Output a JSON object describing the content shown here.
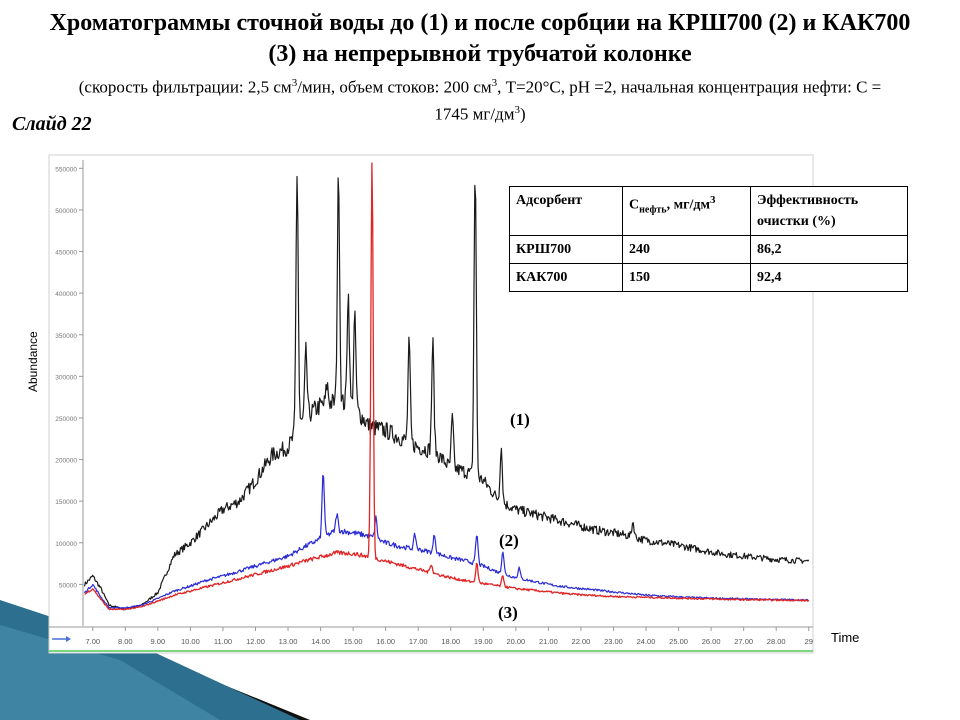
{
  "slide": {
    "title": "Хроматограммы сточной воды до (1) и после сорбции на КРШ700 (2) и КАК700 (3) на непрерывной трубчатой колонке",
    "conditions_part1": "(скорость фильтрации:  2,5 см",
    "conditions_sup1": "3",
    "conditions_part2": "/мин,  объем стоков: 200 см",
    "conditions_sup2": "3",
    "conditions_part3": ",  T=20°C, pH =2, начальная концентрация  нефти: С = 1745 мг/дм",
    "conditions_sup3": "3",
    "conditions_part4": ")",
    "slide_label": "Слайд 22"
  },
  "table": {
    "headers": {
      "adsorbent": "Адсорбент",
      "c_main": "С",
      "c_sub": "нефть",
      "c_unit": ", мг/дм",
      "c_sup": "3",
      "efficiency": "Эффективность очистки (%)"
    },
    "rows": [
      {
        "adsorbent": "КРШ700",
        "c": "240",
        "eff": "86,2"
      },
      {
        "adsorbent": "КАК700",
        "c": "150",
        "eff": "92,4"
      }
    ]
  },
  "chart_data": {
    "type": "line",
    "xlabel": "Time",
    "ylabel": "Abundance",
    "xlim": [
      6.7,
      29.1
    ],
    "ylim": [
      0,
      560000
    ],
    "x_ticks": [
      "7.00",
      "8.00",
      "9.00",
      "10.00",
      "11.00",
      "12.00",
      "13.00",
      "14.00",
      "15.00",
      "16.00",
      "17.00",
      "18.00",
      "19.00",
      "20.00",
      "21.00",
      "22.00",
      "23.00",
      "24.00",
      "25.00",
      "26.00",
      "27.00",
      "28.00",
      "29"
    ],
    "y_ticks": [
      "50000",
      "100000",
      "150000",
      "200000",
      "250000",
      "300000",
      "350000",
      "400000",
      "450000",
      "500000",
      "550000"
    ],
    "series": [
      {
        "name": "(1)",
        "color": "#1a1a1a",
        "x": [
          6.75,
          7.0,
          7.25,
          7.5,
          8.0,
          8.5,
          9.0,
          9.5,
          10.0,
          10.5,
          11.0,
          11.5,
          12.0,
          12.5,
          13.0,
          13.5,
          14.0,
          14.5,
          15.0,
          15.5,
          16.0,
          16.5,
          17.0,
          17.5,
          18.0,
          18.5,
          19.0,
          19.5,
          20.0,
          20.5,
          21.0,
          21.5,
          22.0,
          22.5,
          23.0,
          23.5,
          24.0,
          24.5,
          25.0,
          25.5,
          26.0,
          26.5,
          27.0,
          27.5,
          28.0,
          28.5,
          29.0
        ],
        "y": [
          50000,
          60000,
          45000,
          25000,
          20000,
          25000,
          40000,
          85000,
          100000,
          120000,
          140000,
          150000,
          175000,
          205000,
          215000,
          250000,
          265000,
          270000,
          265000,
          240000,
          235000,
          225000,
          215000,
          210000,
          190000,
          185000,
          175000,
          150000,
          140000,
          135000,
          130000,
          125000,
          120000,
          115000,
          112000,
          108000,
          103000,
          100000,
          97000,
          93000,
          89000,
          86000,
          84000,
          82000,
          80000,
          79000,
          78000
        ],
        "peaks": [
          {
            "x": 13.28,
            "y": 545000
          },
          {
            "x": 13.55,
            "y": 330000
          },
          {
            "x": 14.2,
            "y": 290000
          },
          {
            "x": 14.55,
            "y": 545000
          },
          {
            "x": 14.85,
            "y": 400000
          },
          {
            "x": 15.05,
            "y": 370000
          },
          {
            "x": 16.72,
            "y": 340000
          },
          {
            "x": 17.45,
            "y": 340000
          },
          {
            "x": 18.05,
            "y": 250000
          },
          {
            "x": 18.75,
            "y": 545000
          },
          {
            "x": 19.55,
            "y": 215000
          },
          {
            "x": 23.6,
            "y": 125000
          },
          {
            "x": 27.75,
            "y": 60000
          }
        ]
      },
      {
        "name": "(2)",
        "color": "#2b2bd6",
        "x": [
          6.75,
          7.0,
          7.25,
          7.5,
          8.0,
          8.5,
          9.0,
          9.5,
          10.0,
          10.5,
          11.0,
          11.5,
          12.0,
          12.5,
          13.0,
          13.5,
          14.0,
          14.5,
          15.0,
          15.5,
          16.0,
          16.5,
          17.0,
          17.5,
          18.0,
          18.5,
          19.0,
          19.5,
          20.0,
          20.5,
          21.0,
          21.5,
          22.0,
          22.5,
          23.0,
          23.5,
          24.0,
          24.5,
          25.0,
          25.5,
          26.0,
          26.5,
          27.0,
          27.5,
          28.0,
          28.5,
          29.0
        ],
        "y": [
          40000,
          50000,
          35000,
          22000,
          22000,
          25000,
          33000,
          42000,
          48000,
          55000,
          60000,
          66000,
          72000,
          78000,
          84000,
          95000,
          105000,
          115000,
          112000,
          108000,
          100000,
          95000,
          92000,
          88000,
          82000,
          78000,
          72000,
          64000,
          58000,
          54000,
          50000,
          47000,
          45000,
          43000,
          41000,
          39000,
          37000,
          36000,
          35000,
          34000,
          33500,
          33000,
          32500,
          32000,
          32000,
          31500,
          31000
        ],
        "peaks": [
          {
            "x": 14.08,
            "y": 185000
          },
          {
            "x": 14.5,
            "y": 135000
          },
          {
            "x": 15.7,
            "y": 130000
          },
          {
            "x": 16.9,
            "y": 110000
          },
          {
            "x": 17.5,
            "y": 110000
          },
          {
            "x": 18.8,
            "y": 110000
          },
          {
            "x": 19.6,
            "y": 90000
          },
          {
            "x": 20.1,
            "y": 70000
          }
        ]
      },
      {
        "name": "(3)",
        "color": "#e02626",
        "x": [
          6.75,
          7.0,
          7.25,
          7.5,
          8.0,
          8.5,
          9.0,
          9.5,
          10.0,
          10.5,
          11.0,
          11.5,
          12.0,
          12.5,
          13.0,
          13.5,
          14.0,
          14.5,
          15.0,
          15.5,
          16.0,
          16.5,
          17.0,
          17.5,
          18.0,
          18.5,
          19.0,
          19.5,
          20.0,
          20.5,
          21.0,
          21.5,
          22.0,
          22.5,
          23.0,
          23.5,
          24.0,
          24.5,
          25.0,
          25.5,
          26.0,
          26.5,
          27.0,
          27.5,
          28.0,
          28.5,
          29.0
        ],
        "y": [
          38000,
          45000,
          32000,
          20000,
          20000,
          23000,
          30000,
          37000,
          42000,
          47000,
          52000,
          57000,
          62000,
          67000,
          72000,
          78000,
          83000,
          88000,
          87000,
          83000,
          78000,
          73000,
          68000,
          63000,
          58000,
          54000,
          51000,
          48000,
          45000,
          43000,
          41000,
          39000,
          37500,
          36500,
          35500,
          35000,
          34500,
          34000,
          33500,
          33000,
          32500,
          32000,
          31500,
          31500,
          31000,
          31000,
          30500
        ],
        "peaks": [
          {
            "x": 15.58,
            "y": 560000
          },
          {
            "x": 17.4,
            "y": 75000
          },
          {
            "x": 18.8,
            "y": 75000
          },
          {
            "x": 19.6,
            "y": 60000
          }
        ]
      }
    ]
  }
}
